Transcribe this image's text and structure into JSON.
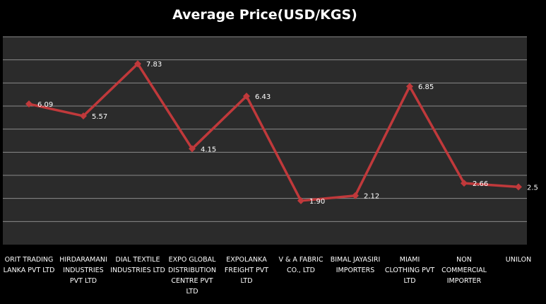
{
  "chart_data": {
    "type": "line",
    "title": "Average Price(USD/KGS)",
    "xlabel": "",
    "ylabel": "",
    "ylim": [
      0,
      9
    ],
    "grid": true,
    "legend": "none",
    "categories": [
      "ORIT TRADING LANKA PVT LTD",
      "HIRDARAMANI INDUSTRIES PVT LTD",
      "DIAL TEXTILE INDUSTRIES LTD",
      "EXPO GLOBAL DISTRIBUTION CENTRE PVT LTD",
      "EXPOLANKA FREIGHT PVT LTD",
      "V & A FABRIC CO., LTD",
      "BIMAL JAYASIRI IMPORTERS",
      "MIAMI CLOTHING PVT LTD",
      "NON COMMERCIAL IMPORTER",
      "UNILON"
    ],
    "series": [
      {
        "values": [
          6.09,
          5.57,
          7.83,
          4.15,
          6.43,
          1.9,
          2.12,
          6.85,
          2.66,
          2.5
        ],
        "labels": [
          "6.09",
          "5.57",
          "7.83",
          "4.15",
          "6.43",
          "1.90",
          "2.12",
          "6.85",
          "2.66",
          "2.5"
        ],
        "color": "#c0393b"
      }
    ]
  },
  "colors": {
    "plot_background": "#2b2b2b",
    "gridline": "#8a8a8a",
    "text": "#ffffff"
  }
}
